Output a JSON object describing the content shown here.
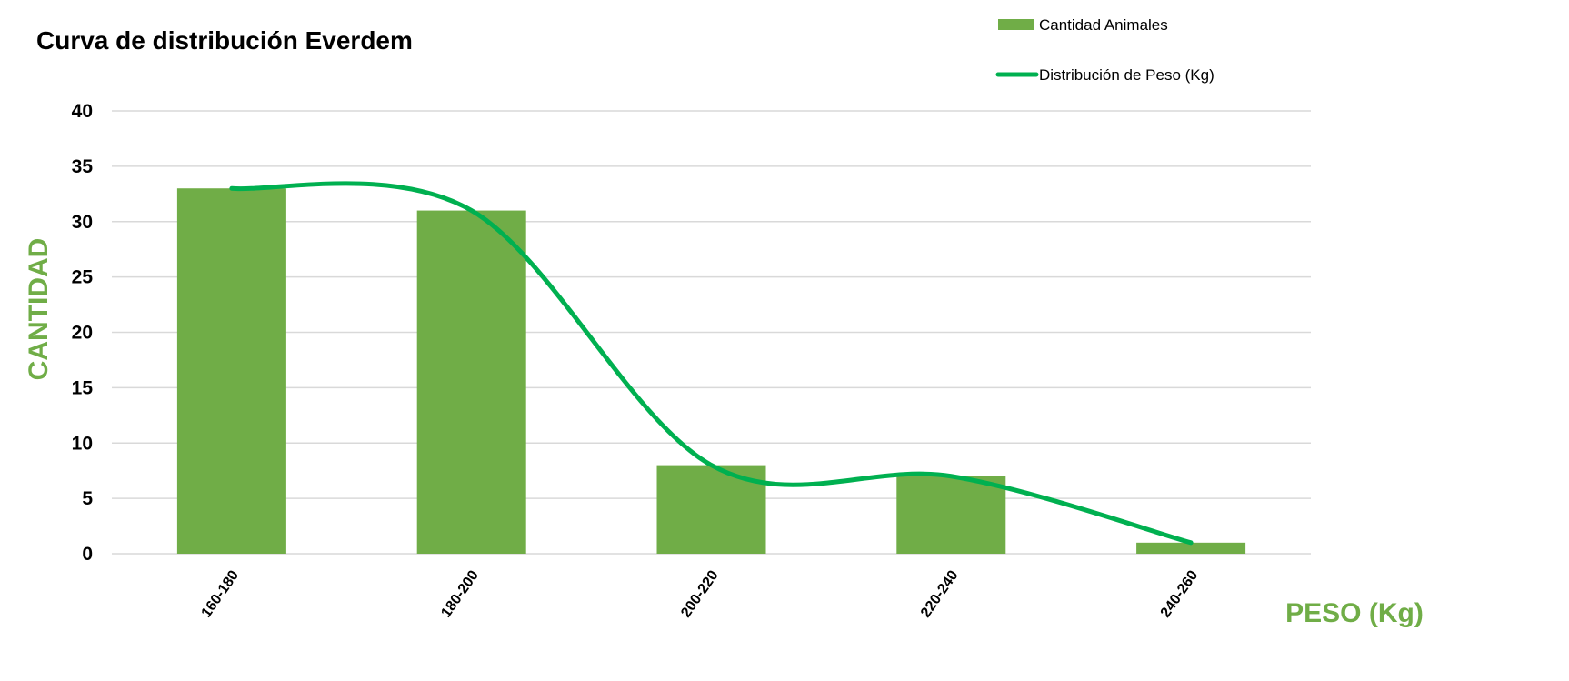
{
  "chart_data": {
    "type": "bar",
    "title": "Curva de distribución Everdem",
    "xlabel": "PESO (Kg)",
    "ylabel": "CANTIDAD",
    "categories": [
      "160-180",
      "180-200",
      "200-220",
      "220-240",
      "240-260"
    ],
    "series": [
      {
        "name": "Cantidad Animales",
        "type": "bar",
        "values": [
          33,
          31,
          8,
          7,
          1
        ],
        "color": "#70AD47"
      },
      {
        "name": "Distribución de Peso (Kg)",
        "type": "line",
        "smooth": true,
        "values": [
          33,
          31,
          8,
          7,
          1
        ],
        "color": "#00B050"
      }
    ],
    "ylim": [
      0,
      40
    ],
    "yticks": [
      0,
      5,
      10,
      15,
      20,
      25,
      30,
      35,
      40
    ],
    "grid": true,
    "legend": "top-right",
    "colors": {
      "axis_label": "#70AD47",
      "grid": "#D9D9D9"
    }
  }
}
